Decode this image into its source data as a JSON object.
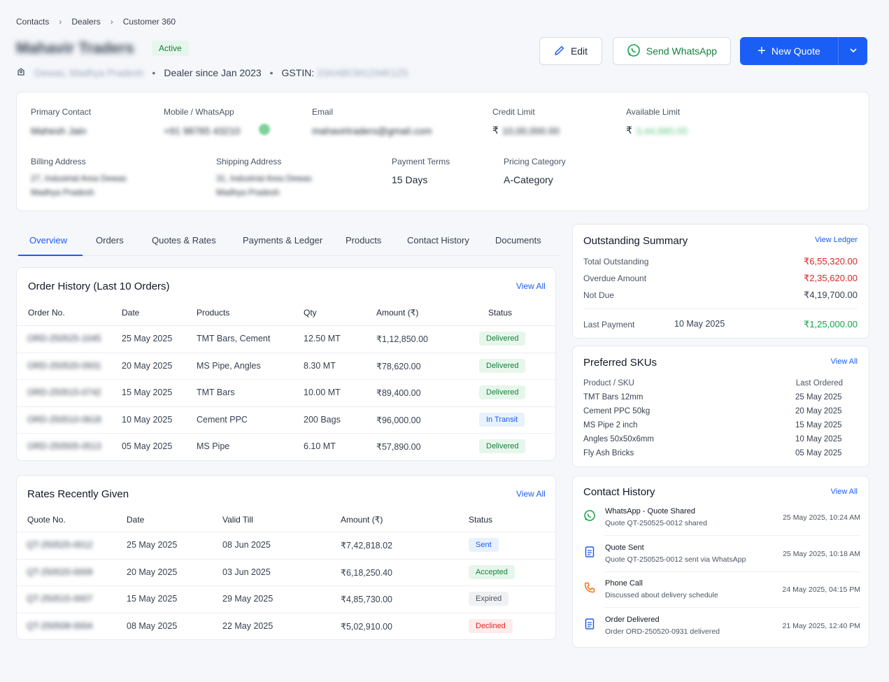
{
  "breadcrumb": [
    "Contacts",
    "Dealers",
    "Customer 360"
  ],
  "dealer": {
    "name": "Mahavir Traders",
    "status": "Active",
    "location": "Dewas, Madhya Pradesh",
    "since": "Dealer since Jan 2023",
    "gstin_label": "GSTIN:",
    "gstin": "23AABCM1234K1Z5"
  },
  "actions": {
    "edit": "Edit",
    "whatsapp": "Send WhatsApp",
    "new_quote": "New Quote"
  },
  "info": {
    "primary_contact_label": "Primary Contact",
    "primary_contact": "Mahesh Jain",
    "mobile_label": "Mobile / WhatsApp",
    "mobile": "+91 98765 43210",
    "email_label": "Email",
    "email": "mahavirtraders@gmail.com",
    "credit_limit_label": "Credit Limit",
    "credit_limit_symbol": "₹",
    "credit_limit": "10,00,000.00",
    "available_limit_label": "Available Limit",
    "available_limit_symbol": "₹",
    "available_limit": "3,44,680.00",
    "billing_label": "Billing Address",
    "billing_line1": "27, Industrial Area Dewas",
    "billing_line2": "Madhya Pradesh",
    "shipping_label": "Shipping Address",
    "shipping_line1": "31, Industrial Area Dewas",
    "shipping_line2": "Madhya Pradesh",
    "payment_terms_label": "Payment Terms",
    "payment_terms": "15 Days",
    "pricing_label": "Pricing Category",
    "pricing": "A-Category"
  },
  "tabs": [
    "Overview",
    "Orders",
    "Quotes & Rates",
    "Payments & Ledger",
    "Products",
    "Contact History",
    "Documents"
  ],
  "orders": {
    "title": "Order History (Last 10 Orders)",
    "view_all": "View All",
    "headers": [
      "Order No.",
      "Date",
      "Products",
      "Qty",
      "Amount (₹)",
      "Status"
    ],
    "rows": [
      {
        "no": "ORD-250525-1045",
        "date": "25 May 2025",
        "products": "TMT Bars, Cement",
        "qty": "12.50 MT",
        "amount": "₹1,12,850.00",
        "status": "Delivered"
      },
      {
        "no": "ORD-250520-0931",
        "date": "20 May 2025",
        "products": "MS Pipe, Angles",
        "qty": "8.30 MT",
        "amount": "₹78,620.00",
        "status": "Delivered"
      },
      {
        "no": "ORD-250515-0742",
        "date": "15 May 2025",
        "products": "TMT Bars",
        "qty": "10.00 MT",
        "amount": "₹89,400.00",
        "status": "Delivered"
      },
      {
        "no": "ORD-250510-0618",
        "date": "10 May 2025",
        "products": "Cement PPC",
        "qty": "200 Bags",
        "amount": "₹96,000.00",
        "status": "In Transit"
      },
      {
        "no": "ORD-250505-0513",
        "date": "05 May 2025",
        "products": "MS Pipe",
        "qty": "6.10 MT",
        "amount": "₹57,890.00",
        "status": "Delivered"
      }
    ]
  },
  "rates": {
    "title": "Rates Recently Given",
    "view_all": "View All",
    "headers": [
      "Quote No.",
      "Date",
      "Valid Till",
      "Amount (₹)",
      "Status"
    ],
    "rows": [
      {
        "no": "QT-250525-0012",
        "date": "25 May 2025",
        "valid": "08 Jun 2025",
        "amount": "₹7,42,818.02",
        "status": "Sent"
      },
      {
        "no": "QT-250520-0009",
        "date": "20 May 2025",
        "valid": "03 Jun 2025",
        "amount": "₹6,18,250.40",
        "status": "Accepted"
      },
      {
        "no": "QT-250515-0007",
        "date": "15 May 2025",
        "valid": "29 May 2025",
        "amount": "₹4,85,730.00",
        "status": "Expired"
      },
      {
        "no": "QT-250508-0004",
        "date": "08 May 2025",
        "valid": "22 May 2025",
        "amount": "₹5,02,910.00",
        "status": "Declined"
      }
    ]
  },
  "outstanding": {
    "title": "Outstanding Summary",
    "view_ledger": "View Ledger",
    "total_label": "Total Outstanding",
    "total": "₹6,55,320.00",
    "overdue_label": "Overdue Amount",
    "overdue": "₹2,35,620.00",
    "not_due_label": "Not Due",
    "not_due": "₹4,19,700.00",
    "last_payment_label": "Last Payment",
    "last_payment_date": "10 May 2025",
    "last_payment": "₹1,25,000.00"
  },
  "skus": {
    "title": "Preferred SKUs",
    "view_all": "View All",
    "col1": "Product / SKU",
    "col2": "Last Ordered",
    "rows": [
      {
        "name": "TMT Bars 12mm",
        "date": "25 May 2025"
      },
      {
        "name": "Cement PPC 50kg",
        "date": "20 May 2025"
      },
      {
        "name": "MS Pipe 2 inch",
        "date": "15 May 2025"
      },
      {
        "name": "Angles 50x50x6mm",
        "date": "10 May 2025"
      },
      {
        "name": "Fly Ash Bricks",
        "date": "05 May 2025"
      }
    ]
  },
  "contact_history": {
    "title": "Contact History",
    "view_all": "View All",
    "items": [
      {
        "title": "WhatsApp - Quote Shared",
        "sub": "Quote QT-250525-0012 shared",
        "time": "25 May 2025, 10:24 AM",
        "icon": "whatsapp-icon"
      },
      {
        "title": "Quote Sent",
        "sub": "Quote QT-250525-0012 sent via WhatsApp",
        "time": "25 May 2025, 10:18 AM",
        "icon": "document-icon"
      },
      {
        "title": "Phone Call",
        "sub": "Discussed about delivery schedule",
        "time": "24 May 2025, 04:15 PM",
        "icon": "phone-icon"
      },
      {
        "title": "Order Delivered",
        "sub": "Order ORD-250520-0931 delivered",
        "time": "21 May 2025, 12:40 PM",
        "icon": "document-icon"
      }
    ]
  },
  "colors": {
    "accent": "#1a5ef5",
    "success": "#16a34a",
    "danger": "#dc2626"
  }
}
